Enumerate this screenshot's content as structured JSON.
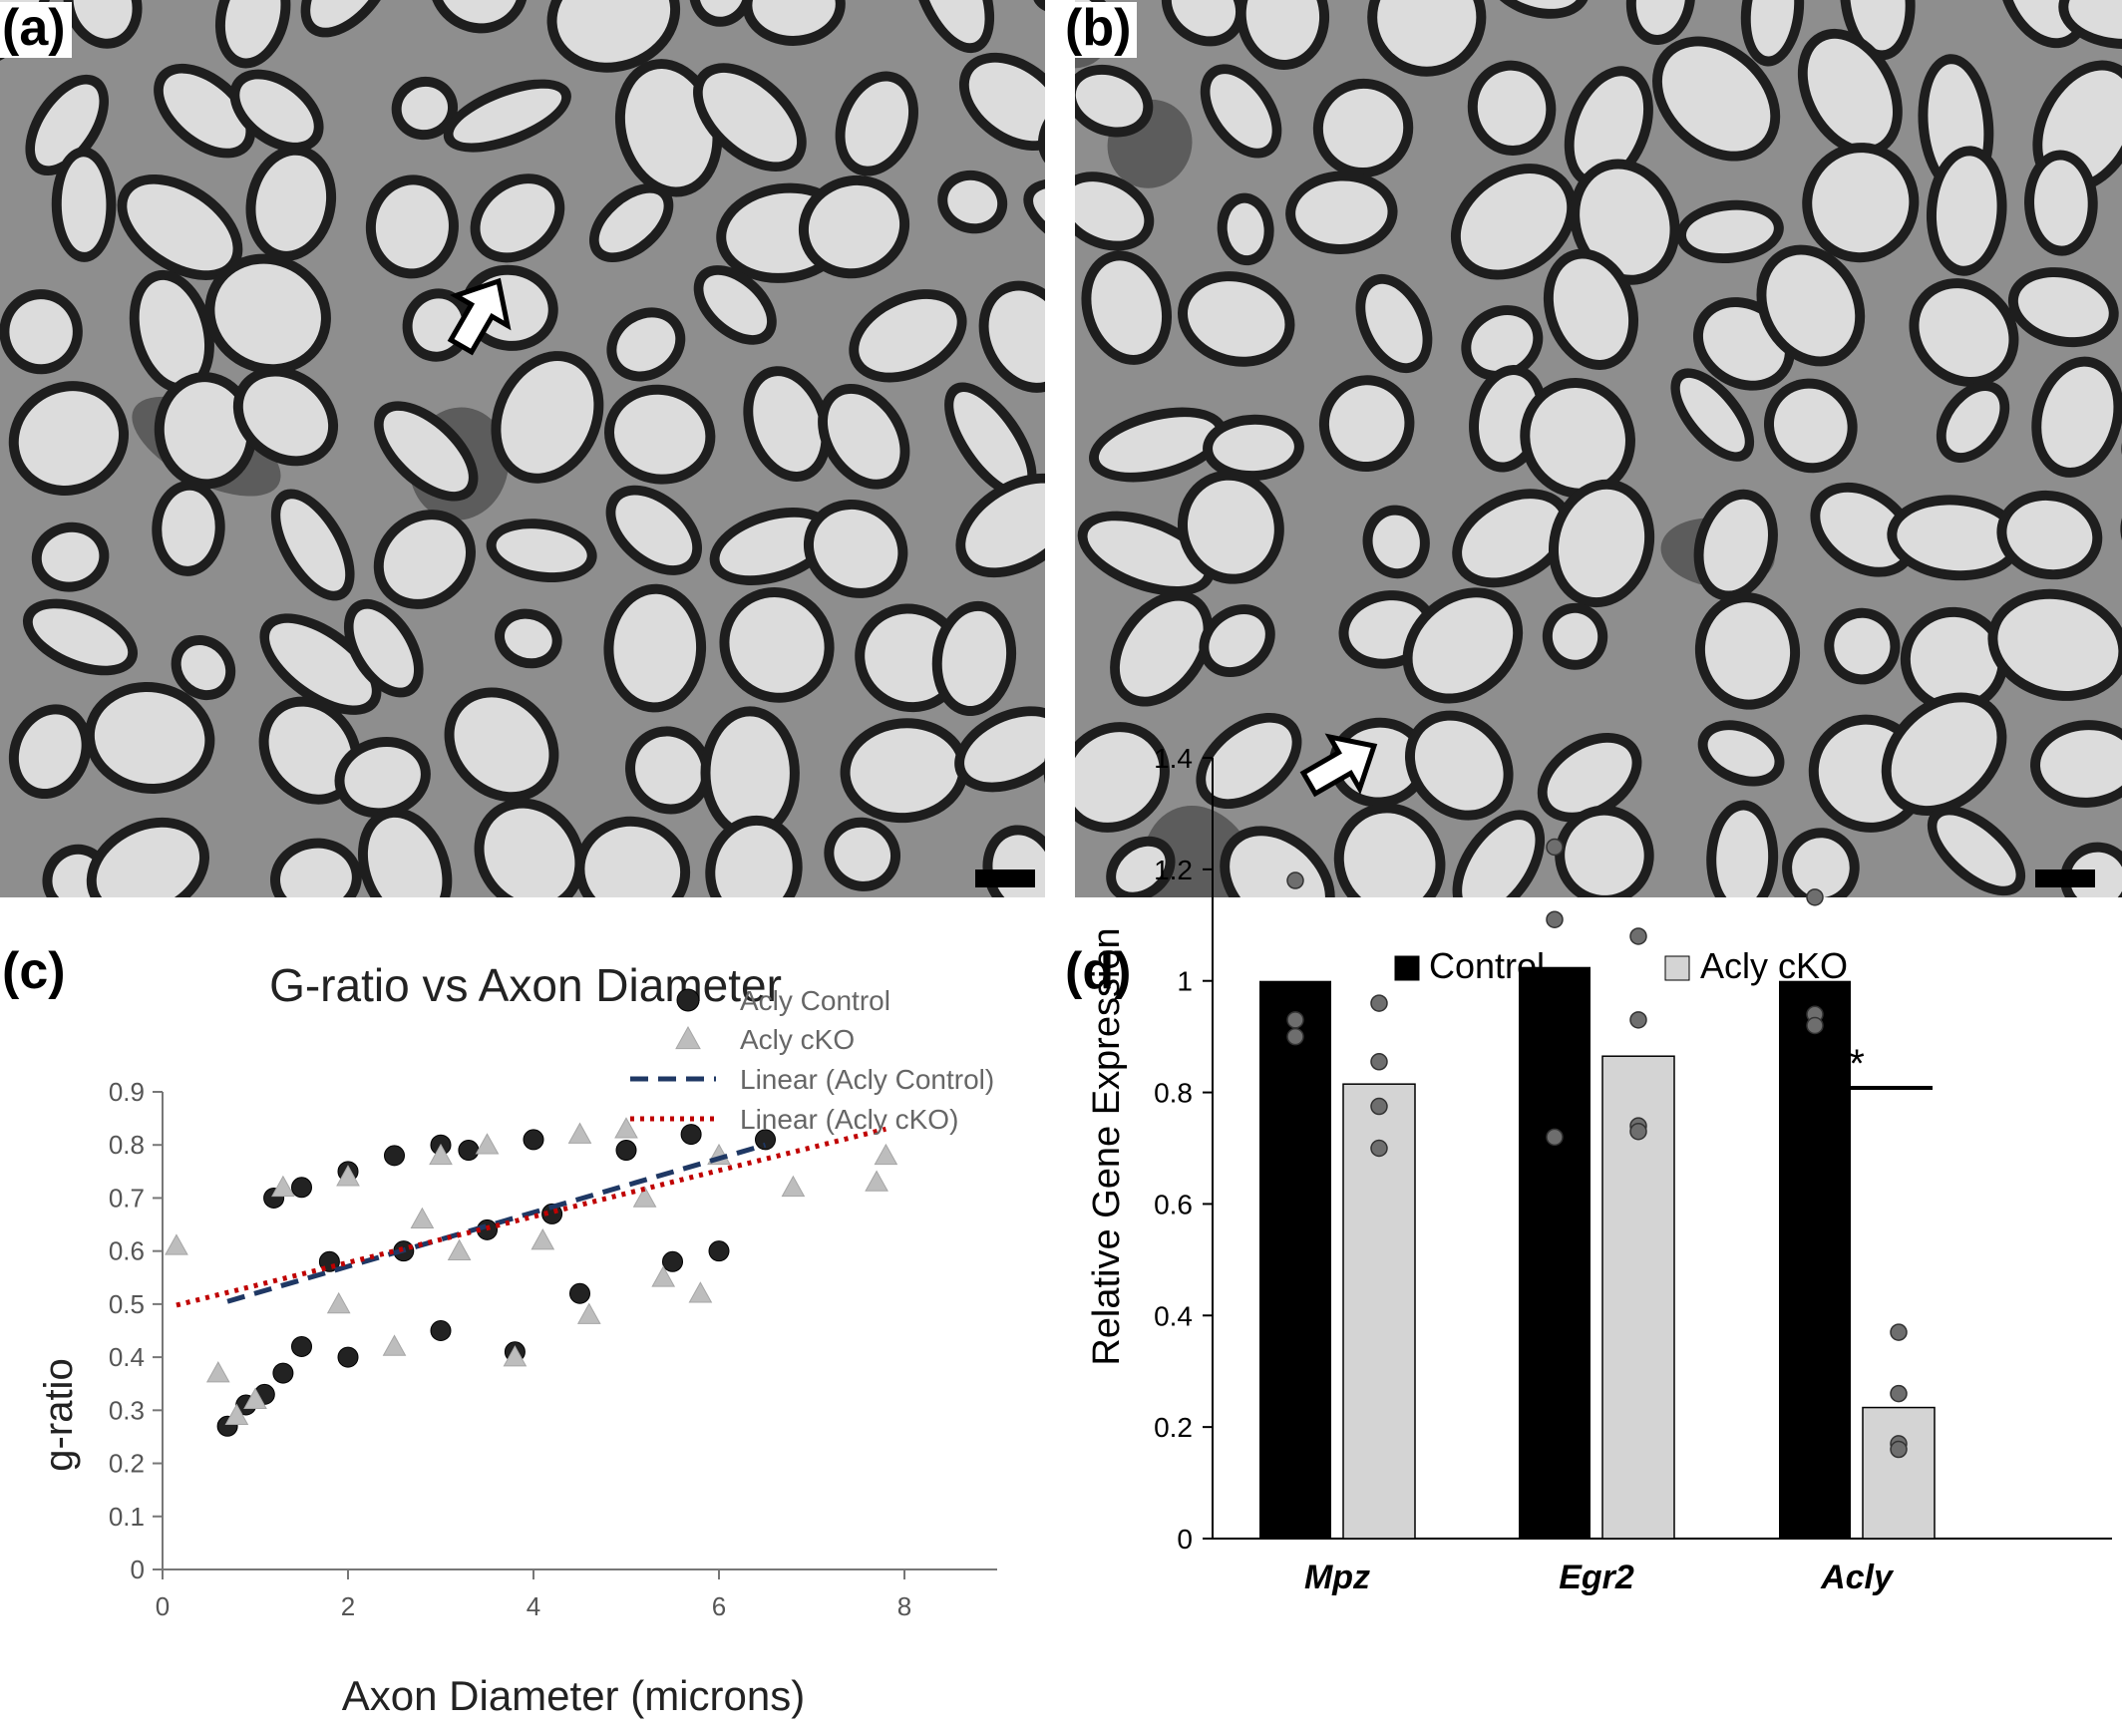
{
  "panels": {
    "a": {
      "label": "(a)"
    },
    "b": {
      "label": "(b)"
    },
    "c": {
      "label": "(c)"
    },
    "d": {
      "label": "(d)"
    }
  },
  "micrograph": {
    "axon_fill": "#dcdcdc",
    "myelin": "#1e1e1e",
    "background": "#8e8e8e"
  },
  "chart_data": [
    {
      "type": "scatter",
      "title": "G-ratio vs Axon Diameter",
      "xlabel": "Axon Diameter (microns)",
      "ylabel": "g-ratio",
      "xlim": [
        0,
        9
      ],
      "ylim": [
        0,
        0.9
      ],
      "xticks": [
        "0",
        "2",
        "4",
        "6",
        "8"
      ],
      "yticks": [
        "0",
        "0.1",
        "0.2",
        "0.3",
        "0.4",
        "0.5",
        "0.6",
        "0.7",
        "0.8",
        "0.9"
      ],
      "grid": false,
      "legend_position": "bottom-right",
      "series": [
        {
          "name": "Acly Control",
          "marker": "circle",
          "color": "#222222",
          "points": [
            [
              0.7,
              0.27
            ],
            [
              0.9,
              0.31
            ],
            [
              1.1,
              0.33
            ],
            [
              1.3,
              0.37
            ],
            [
              1.5,
              0.42
            ],
            [
              1.2,
              0.7
            ],
            [
              1.5,
              0.72
            ],
            [
              2,
              0.75
            ],
            [
              2.5,
              0.78
            ],
            [
              3,
              0.8
            ],
            [
              3.3,
              0.79
            ],
            [
              4,
              0.81
            ],
            [
              5,
              0.79
            ],
            [
              5.7,
              0.82
            ],
            [
              6.5,
              0.81
            ],
            [
              2,
              0.4
            ],
            [
              3,
              0.45
            ],
            [
              3.8,
              0.41
            ],
            [
              4.5,
              0.52
            ],
            [
              5.5,
              0.58
            ],
            [
              6,
              0.6
            ],
            [
              1.8,
              0.58
            ],
            [
              2.6,
              0.6
            ],
            [
              3.5,
              0.64
            ],
            [
              4.2,
              0.67
            ]
          ]
        },
        {
          "name": "Acly cKO",
          "marker": "triangle",
          "color": "#bdbdbd",
          "points": [
            [
              0.15,
              0.61
            ],
            [
              0.6,
              0.37
            ],
            [
              0.8,
              0.29
            ],
            [
              1,
              0.32
            ],
            [
              1.3,
              0.72
            ],
            [
              2,
              0.74
            ],
            [
              3,
              0.78
            ],
            [
              3.5,
              0.8
            ],
            [
              4.5,
              0.82
            ],
            [
              5,
              0.83
            ],
            [
              6,
              0.78
            ],
            [
              6.8,
              0.72
            ],
            [
              7.7,
              0.73
            ],
            [
              7.8,
              0.78
            ],
            [
              5.8,
              0.52
            ],
            [
              5.4,
              0.55
            ],
            [
              4.6,
              0.48
            ],
            [
              3.8,
              0.4
            ],
            [
              2.5,
              0.42
            ],
            [
              1.9,
              0.5
            ],
            [
              3.2,
              0.6
            ],
            [
              4.1,
              0.62
            ],
            [
              2.8,
              0.66
            ],
            [
              5.2,
              0.7
            ]
          ]
        }
      ],
      "trendlines": [
        {
          "name": "Linear (Acly Control)",
          "style": "dashed",
          "color": "#1f3864",
          "x": [
            0.7,
            6.5
          ],
          "y": [
            0.505,
            0.8
          ]
        },
        {
          "name": "Linear (Acly cKO)",
          "style": "dotted",
          "color": "#c00000",
          "x": [
            0.15,
            7.8
          ],
          "y": [
            0.498,
            0.83
          ]
        }
      ]
    },
    {
      "type": "bar",
      "ylabel": "Relative Gene Expression",
      "ylim": [
        0,
        1.4
      ],
      "yticks": [
        "0",
        "0.2",
        "0.4",
        "0.6",
        "0.8",
        "1",
        "1.2",
        "1.4"
      ],
      "categories": [
        "Mpz",
        "Egr2",
        "Acly"
      ],
      "legend_position": "top",
      "series": [
        {
          "name": "Control",
          "color": "#000000",
          "values": [
            1.0,
            1.025,
            1.0
          ],
          "points": [
            [
              1.18,
              0.93,
              0.9
            ],
            [
              1.24,
              1.11,
              0.72
            ],
            [
              1.15,
              0.94,
              0.92
            ]
          ]
        },
        {
          "name": "Acly cKO",
          "color": "#d4d4d4",
          "values": [
            0.815,
            0.865,
            0.235
          ],
          "points": [
            [
              0.96,
              0.855,
              0.775,
              0.7
            ],
            [
              1.08,
              0.93,
              0.74,
              0.73
            ],
            [
              0.37,
              0.26,
              0.17,
              0.16
            ]
          ]
        }
      ],
      "significance": [
        {
          "category": "Acly",
          "label": "*"
        }
      ]
    }
  ]
}
